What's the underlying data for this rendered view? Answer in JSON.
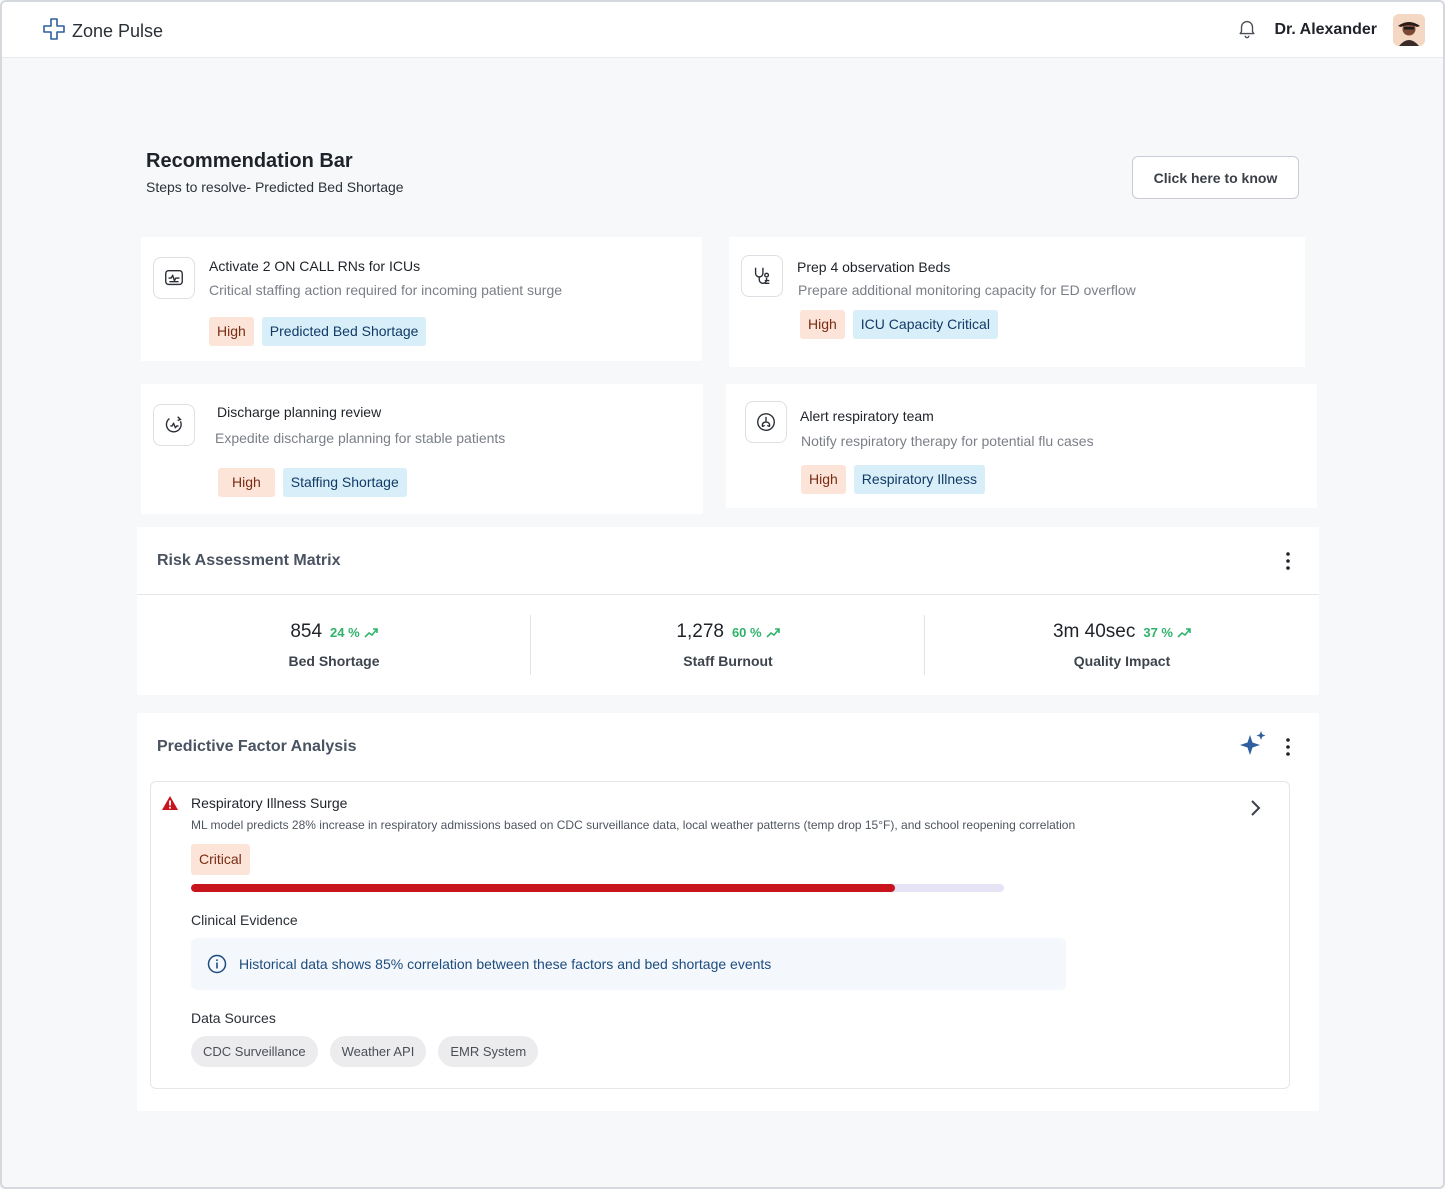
{
  "header": {
    "brand": "Zone Pulse",
    "user_name": "Dr. Alexander"
  },
  "recommendation": {
    "title": "Recommendation Bar",
    "subtitle": "Steps to resolve- Predicted Bed Shortage",
    "cta_label": "Click here to know",
    "cards": [
      {
        "title": "Activate 2 ON CALL RNs for ICUs",
        "description": "Critical staffing action required for incoming patient surge",
        "priority": "High",
        "category": "Predicted Bed Shortage",
        "icon": "monitor-pulse-icon"
      },
      {
        "title": "Prep 4 observation Beds",
        "description": "Prepare additional monitoring capacity for ED overflow",
        "priority": "High",
        "category": "ICU Capacity Critical",
        "icon": "stethoscope-icon"
      },
      {
        "title": "Discharge planning review",
        "description": "Expedite discharge planning for stable patients",
        "priority": "High",
        "category": "Staffing Shortage",
        "icon": "clipboard-pulse-icon"
      },
      {
        "title": "Alert respiratory team",
        "description": "Notify respiratory therapy for potential flu cases",
        "priority": "High",
        "category": "Respiratory Illness",
        "icon": "lungs-icon"
      }
    ]
  },
  "risk_matrix": {
    "title": "Risk Assessment Matrix",
    "metrics": [
      {
        "value": "854",
        "change": "24 %",
        "label": "Bed Shortage"
      },
      {
        "value": "1,278",
        "change": "60 %",
        "label": "Staff Burnout"
      },
      {
        "value": "3m 40sec",
        "change": "37 %",
        "label": "Quality Impact"
      }
    ]
  },
  "predictive": {
    "title": "Predictive Factor Analysis",
    "factor": {
      "title": "Respiratory Illness Surge",
      "description": "ML model predicts 28% increase in respiratory admissions based on CDC surveillance data, local weather patterns (temp drop 15°F), and school reopening correlation",
      "severity": "Critical",
      "progress_fraction": 0.866,
      "evidence_title": "Clinical Evidence",
      "evidence_text": "Historical data shows 85% correlation between these factors and bed shortage events",
      "sources_title": "Data Sources",
      "sources": [
        "CDC Surveillance",
        "Weather API",
        "EMR System"
      ]
    }
  },
  "colors": {
    "accent": "#2f5f9e",
    "critical": "#c8141c",
    "trend_up": "#2fb36a"
  }
}
